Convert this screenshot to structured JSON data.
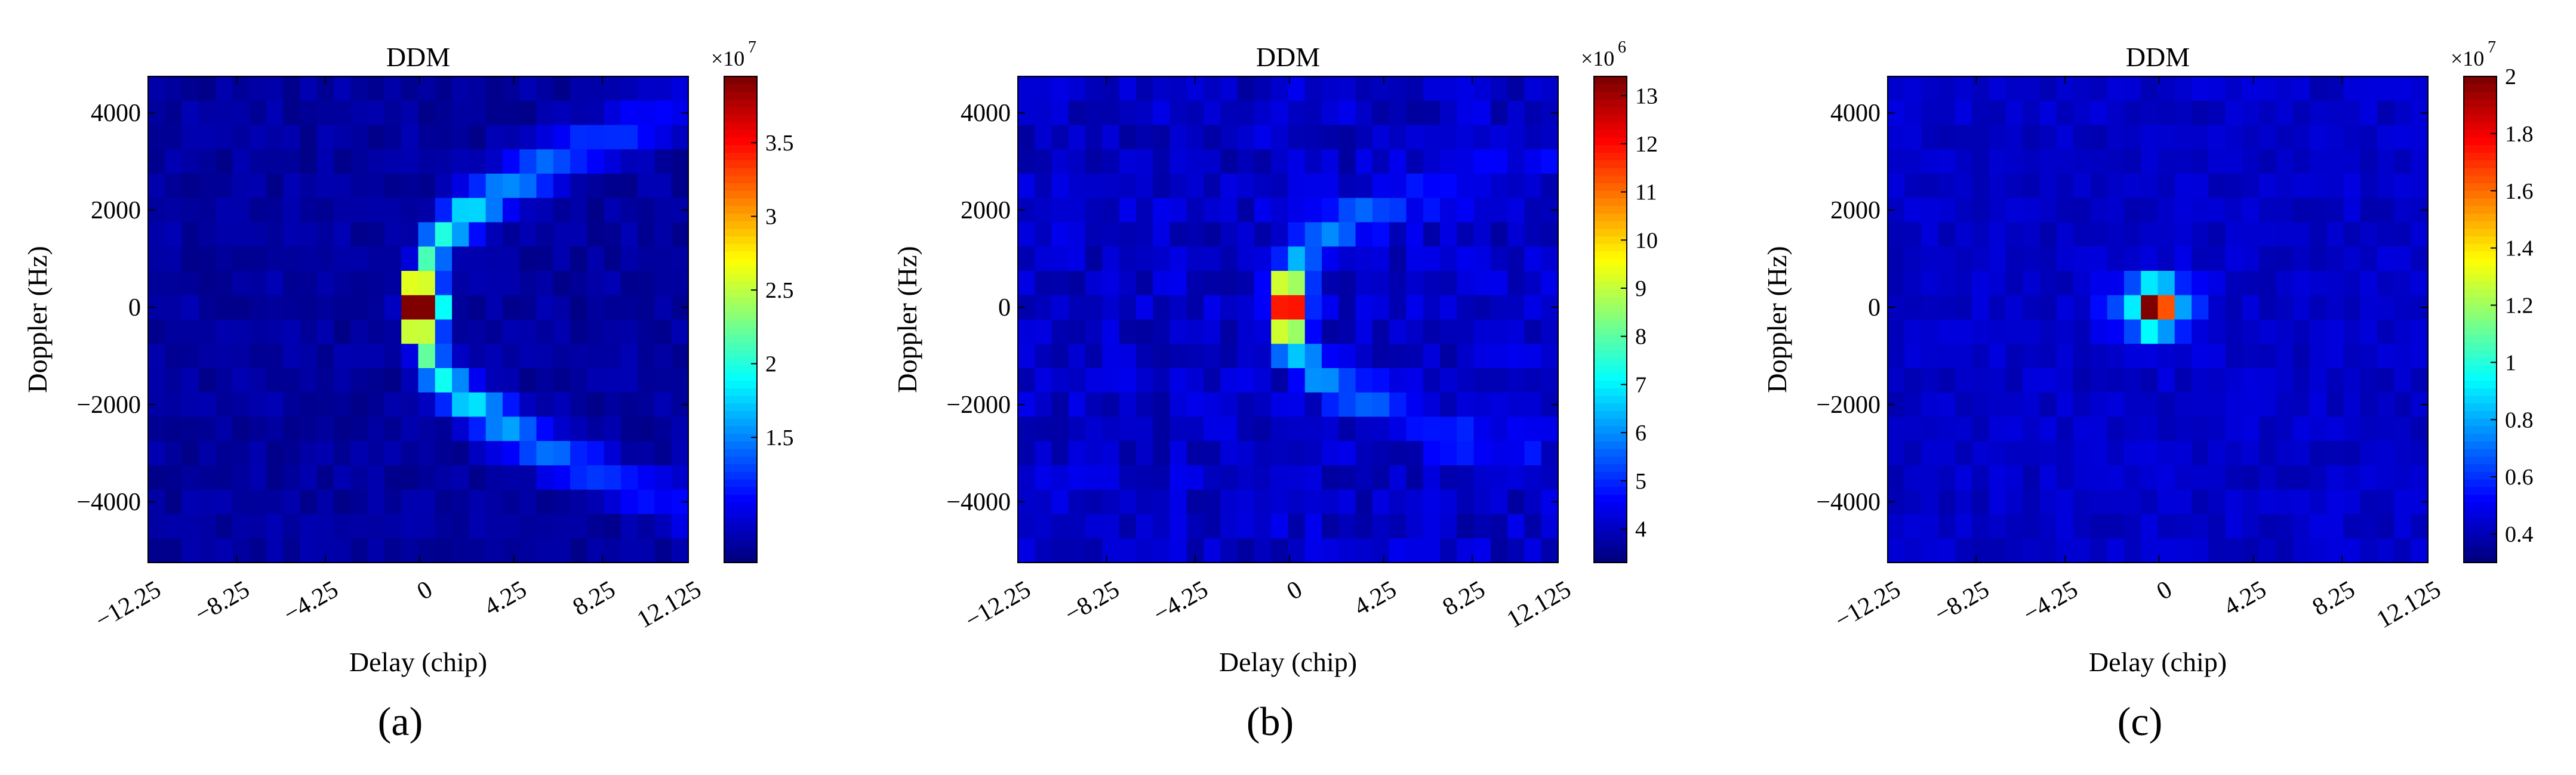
{
  "chart_data": [
    {
      "type": "heatmap",
      "panel_label": "(a)",
      "title": "DDM",
      "xlabel": "Delay (chip)",
      "ylabel": "Doppler (Hz)",
      "x_ticks": [
        "-12.25",
        "-8.25",
        "-4.25",
        "0",
        "4.25",
        "8.25",
        "12.125"
      ],
      "y_ticks": [
        "4000",
        "2000",
        "0",
        "-2000",
        "-4000"
      ],
      "x_tick_values": [
        -12.25,
        -8.25,
        -4.25,
        0,
        4.25,
        8.25,
        12.125
      ],
      "y_tick_values": [
        4000,
        2000,
        0,
        -2000,
        -4000
      ],
      "xlim": [
        -12.25,
        12.125
      ],
      "ylim": [
        -5250,
        4750
      ],
      "colorbar": {
        "multiplier": "×10",
        "exponent": "7",
        "ticks": [
          "1.5",
          "2",
          "2.5",
          "3",
          "3.5"
        ],
        "tick_values": [
          1.5,
          2,
          2.5,
          3,
          3.5
        ],
        "range": [
          0.65,
          3.95
        ]
      },
      "peak": {
        "delay": 0.3,
        "doppler": 0,
        "value": 3.9
      },
      "noise_level": 0.75,
      "spread": "wide horseshoe"
    },
    {
      "type": "heatmap",
      "panel_label": "(b)",
      "title": "DDM",
      "xlabel": "Delay (chip)",
      "ylabel": "Doppler (Hz)",
      "x_ticks": [
        "-12.25",
        "-8.25",
        "-4.25",
        "0",
        "4.25",
        "8.25",
        "12.125"
      ],
      "y_ticks": [
        "4000",
        "2000",
        "0",
        "-2000",
        "-4000"
      ],
      "x_tick_values": [
        -12.25,
        -8.25,
        -4.25,
        0,
        4.25,
        8.25,
        12.125
      ],
      "y_tick_values": [
        4000,
        2000,
        0,
        -2000,
        -4000
      ],
      "xlim": [
        -12.25,
        12.125
      ],
      "ylim": [
        -5250,
        4750
      ],
      "colorbar": {
        "multiplier": "×10",
        "exponent": "6",
        "ticks": [
          "4",
          "5",
          "6",
          "7",
          "8",
          "9",
          "10",
          "11",
          "12",
          "13"
        ],
        "tick_values": [
          4,
          5,
          6,
          7,
          8,
          9,
          10,
          11,
          12,
          13
        ],
        "range": [
          3.3,
          13.4
        ]
      },
      "peak": {
        "delay": 0.0,
        "doppler": 0,
        "value": 13.3
      },
      "noise_level": 4.0,
      "spread": "narrow horseshoe"
    },
    {
      "type": "heatmap",
      "panel_label": "(c)",
      "title": "DDM",
      "xlabel": "Delay (chip)",
      "ylabel": "Doppler (Hz)",
      "x_ticks": [
        "-12.25",
        "-8.25",
        "-4.25",
        "0",
        "4.25",
        "8.25",
        "12.125"
      ],
      "y_ticks": [
        "4000",
        "2000",
        "0",
        "-2000",
        "-4000"
      ],
      "x_tick_values": [
        -12.25,
        -8.25,
        -4.25,
        0,
        4.25,
        8.25,
        12.125
      ],
      "y_tick_values": [
        4000,
        2000,
        0,
        -2000,
        -4000
      ],
      "xlim": [
        -12.25,
        12.125
      ],
      "ylim": [
        -5250,
        4750
      ],
      "colorbar": {
        "multiplier": "×10",
        "exponent": "7",
        "ticks": [
          "0.4",
          "0.6",
          "0.8",
          "1",
          "1.2",
          "1.4",
          "1.6",
          "1.8",
          "2"
        ],
        "tick_values": [
          0.4,
          0.6,
          0.8,
          1,
          1.2,
          1.4,
          1.6,
          1.8,
          2
        ],
        "range": [
          0.3,
          2.0
        ]
      },
      "peak": {
        "delay": -0.2,
        "doppler": 0,
        "value": 2.0
      },
      "noise_level": 0.42,
      "spread": "compact"
    }
  ]
}
